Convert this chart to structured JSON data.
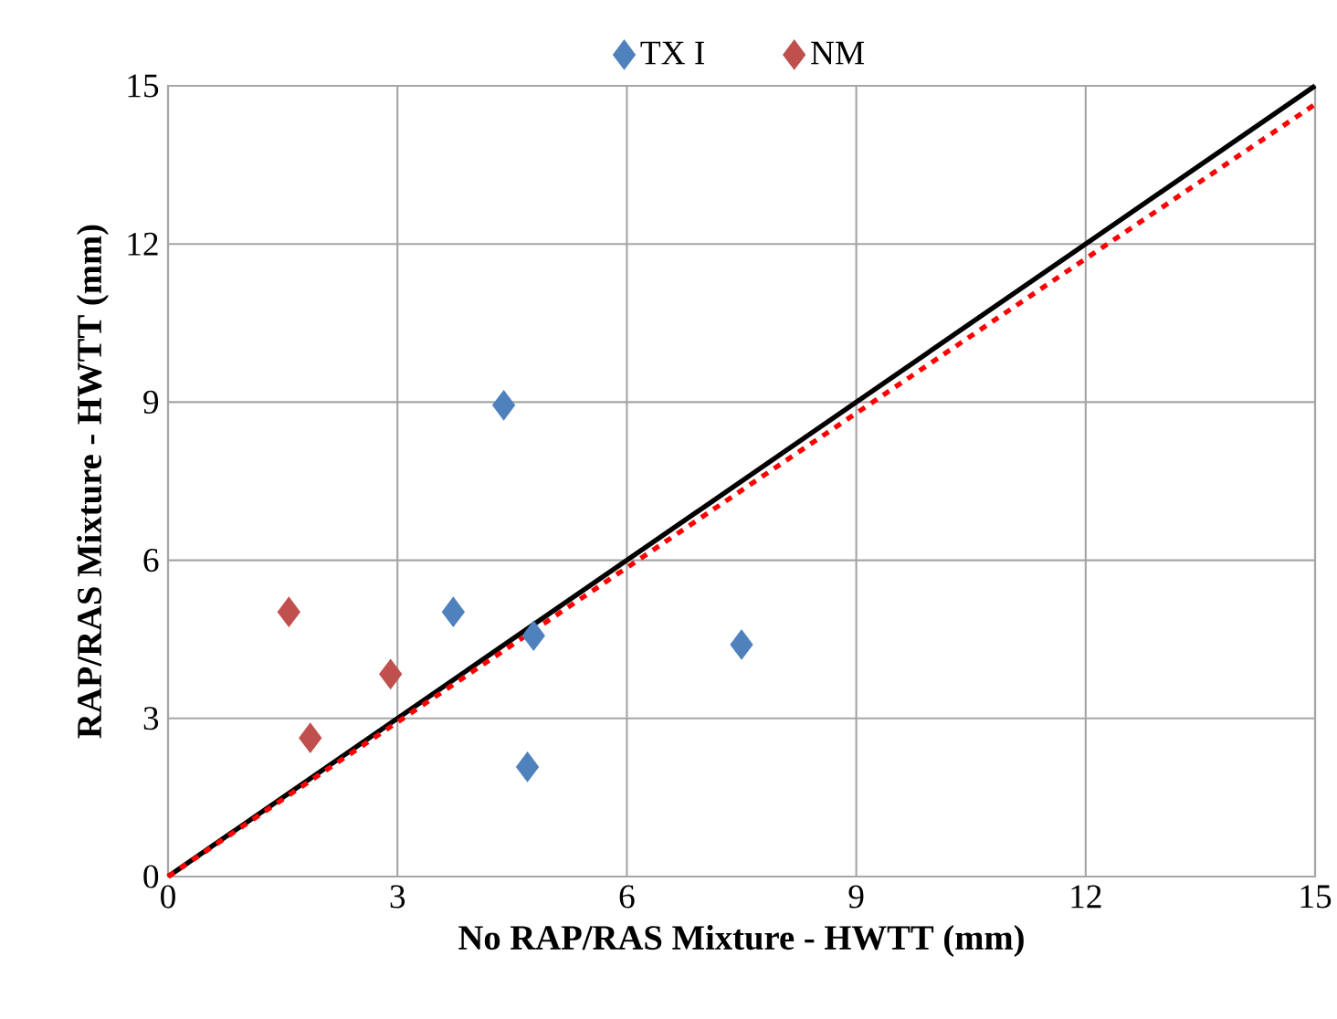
{
  "chart_data": {
    "type": "scatter",
    "xlabel": "No RAP/RAS Mixture - HWTT (mm)",
    "ylabel": "RAP/RAS Mixture - HWTT (mm)",
    "xlim": [
      0,
      15
    ],
    "ylim": [
      0,
      15
    ],
    "xticks": [
      0,
      3,
      6,
      9,
      12,
      15
    ],
    "yticks": [
      0,
      3,
      6,
      9,
      12,
      15
    ],
    "grid": true,
    "legend": "top",
    "marker": "diamond",
    "series": [
      {
        "name": "TX I",
        "color": "#4f81bd",
        "x": [
          4.39,
          3.73,
          4.78,
          4.7,
          7.5
        ],
        "values": [
          8.94,
          5.02,
          4.57,
          2.08,
          4.4
        ]
      },
      {
        "name": "NM",
        "color": "#c0504d",
        "x": [
          1.58,
          1.86,
          2.91
        ],
        "values": [
          5.02,
          2.63,
          3.84
        ]
      },
      {
        "type": "line",
        "color": "#000000",
        "line_style": "solid",
        "marker": "none",
        "x": [
          0,
          15
        ],
        "values": [
          0,
          15
        ]
      },
      {
        "type": "line",
        "color": "#ff0000",
        "line_style": "dashed",
        "marker": "none",
        "x": [
          0,
          15
        ],
        "values": [
          0,
          14.65
        ]
      }
    ]
  }
}
